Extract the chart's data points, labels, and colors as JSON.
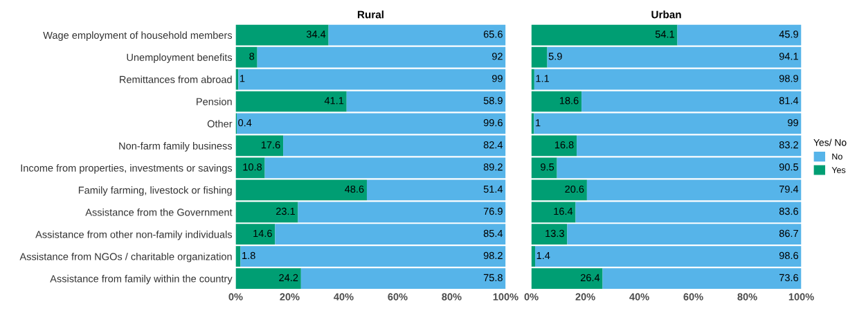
{
  "chart_data": [
    {
      "type": "bar",
      "title": "Rural",
      "orientation": "horizontal",
      "stacked": true,
      "data_labels": true,
      "legend": "right",
      "categories": [
        "Wage employment of household members",
        "Unemployment benefits",
        "Remittances from abroad",
        "Pension",
        "Other",
        "Non-farm family business",
        "Income from properties, investments or savings",
        "Family farming, livestock or fishing",
        "Assistance from the Government",
        "Assistance from other non-family individuals",
        "Assistance from NGOs / charitable organization",
        "Assistance from family within the country"
      ],
      "series": [
        {
          "name": "Yes",
          "color": "#009e73",
          "values": [
            34.4,
            8,
            1,
            41.1,
            0.4,
            17.6,
            10.8,
            48.6,
            23.1,
            14.6,
            1.8,
            24.2
          ]
        },
        {
          "name": "No",
          "color": "#56b4e9",
          "values": [
            65.6,
            92,
            99,
            58.9,
            99.6,
            82.4,
            89.2,
            51.4,
            76.9,
            85.4,
            98.2,
            75.8
          ]
        }
      ],
      "xlim": [
        0,
        100
      ],
      "xticks": [
        {
          "value": 0,
          "label": "0%"
        },
        {
          "value": 20,
          "label": "20%"
        },
        {
          "value": 40,
          "label": "40%"
        },
        {
          "value": 60,
          "label": "60%"
        },
        {
          "value": 80,
          "label": "80%"
        },
        {
          "value": 100,
          "label": "100%"
        }
      ]
    },
    {
      "type": "bar",
      "title": "Urban",
      "orientation": "horizontal",
      "stacked": true,
      "data_labels": true,
      "legend": "right",
      "legend_title": "Yes/ No",
      "tick_labels": "x",
      "categories": [
        null,
        null,
        null,
        null,
        null,
        null,
        null,
        null,
        null,
        null,
        null,
        null
      ],
      "series": [
        {
          "name": "Yes",
          "color": "#009e73",
          "values": [
            54.1,
            5.9,
            1.1,
            18.6,
            1,
            16.8,
            9.5,
            20.6,
            16.4,
            13.3,
            1.4,
            26.4
          ]
        },
        {
          "name": "No",
          "color": "#56b4e9",
          "values": [
            45.9,
            94.1,
            98.9,
            81.4,
            99,
            83.2,
            90.5,
            79.4,
            83.6,
            86.7,
            98.6,
            73.6
          ]
        }
      ],
      "xlim": [
        0,
        100
      ],
      "xticks": [
        {
          "value": 0,
          "label": "0%"
        },
        {
          "value": 20,
          "label": "20%"
        },
        {
          "value": 40,
          "label": "40%"
        },
        {
          "value": 60,
          "label": "60%"
        },
        {
          "value": 80,
          "label": "80%"
        },
        {
          "value": 100,
          "label": "100%"
        }
      ]
    }
  ]
}
